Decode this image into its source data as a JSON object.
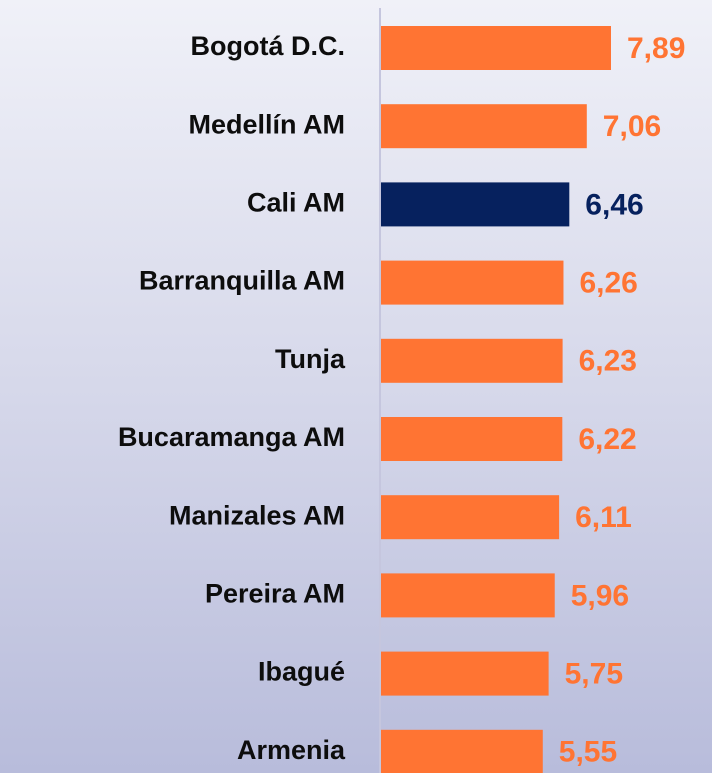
{
  "chart_data": {
    "type": "bar",
    "orientation": "horizontal",
    "categories": [
      "Bogotá D.C.",
      "Medellín AM",
      "Cali AM",
      "Barranquilla AM",
      "Tunja",
      "Bucaramanga AM",
      "Manizales AM",
      "Pereira AM",
      "Ibagué",
      "Armenia"
    ],
    "values": [
      7.89,
      7.06,
      6.46,
      6.26,
      6.23,
      6.22,
      6.11,
      5.96,
      5.75,
      5.55
    ],
    "value_labels": [
      "7,89",
      "7,06",
      "6,46",
      "6,26",
      "6,23",
      "6,22",
      "6,11",
      "5,96",
      "5,75",
      "5,55"
    ],
    "colors": [
      "#ff7433",
      "#ff7433",
      "#06215e",
      "#ff7433",
      "#ff7433",
      "#ff7433",
      "#ff7433",
      "#ff7433",
      "#ff7433",
      "#ff7433"
    ]
  }
}
